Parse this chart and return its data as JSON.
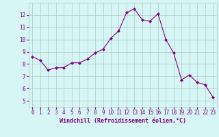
{
  "x": [
    0,
    1,
    2,
    3,
    4,
    5,
    6,
    7,
    8,
    9,
    10,
    11,
    12,
    13,
    14,
    15,
    16,
    17,
    18,
    19,
    20,
    21,
    22,
    23
  ],
  "y": [
    8.6,
    8.3,
    7.5,
    7.7,
    7.7,
    8.1,
    8.1,
    8.4,
    8.9,
    9.2,
    10.1,
    10.7,
    12.2,
    12.5,
    11.6,
    11.5,
    12.1,
    10.0,
    8.9,
    6.7,
    7.1,
    6.5,
    6.3,
    5.3
  ],
  "line_color": "#800080",
  "marker": "D",
  "marker_size": 2.0,
  "bg_color": "#d6f5f5",
  "grid_color": "#b0c8c8",
  "xlabel": "Windchill (Refroidissement éolien,°C)",
  "yticks": [
    5,
    6,
    7,
    8,
    9,
    10,
    11,
    12
  ],
  "ylim": [
    4.5,
    13.0
  ],
  "xlim": [
    -0.5,
    23.5
  ],
  "tick_color": "#800080",
  "label_color": "#800080",
  "tick_fontsize": 5.5,
  "xlabel_fontsize": 6.0
}
